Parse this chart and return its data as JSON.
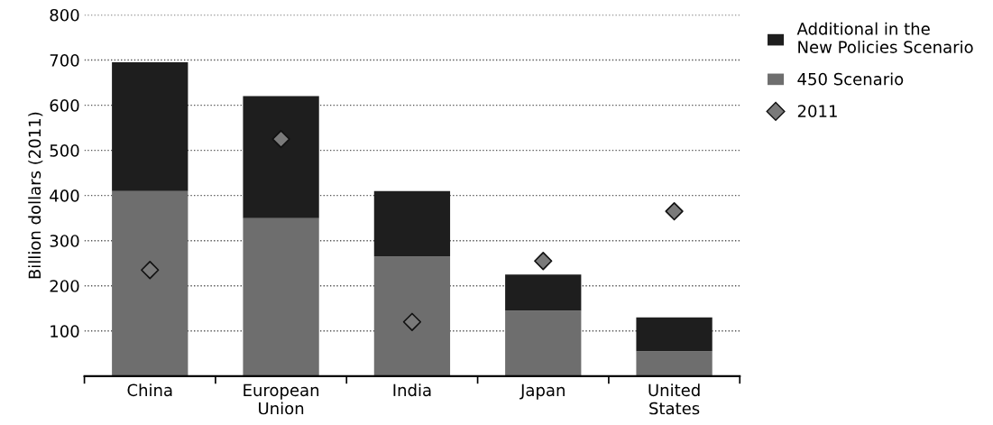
{
  "chart_data": {
    "type": "bar",
    "stacked": true,
    "ylabel": "Billion dollars (2011)",
    "categories": [
      "China",
      "European\nUnion",
      "India",
      "Japan",
      "United\nStates"
    ],
    "series": [
      {
        "name": "450 Scenario",
        "color": "#6e6e6e",
        "values": [
          410,
          350,
          265,
          145,
          55
        ]
      },
      {
        "name": "Additional in the\nNew Policies Scenario",
        "color": "#1e1e1e",
        "values": [
          285,
          270,
          145,
          80,
          75
        ]
      },
      {
        "name": "2011",
        "type": "scatter",
        "color": "#7a7a7a",
        "marker": "diamond",
        "x": [
          "China",
          "European\nUnion",
          "India",
          "Japan",
          "United\nStates"
        ],
        "values": [
          235,
          525,
          120,
          255,
          365
        ]
      }
    ],
    "ylim": [
      0,
      800
    ],
    "yticks": [
      {
        "value": 0,
        "label": null
      },
      100,
      200,
      300,
      400,
      500,
      600,
      700,
      800
    ],
    "grid": "y",
    "legend": "top right"
  }
}
